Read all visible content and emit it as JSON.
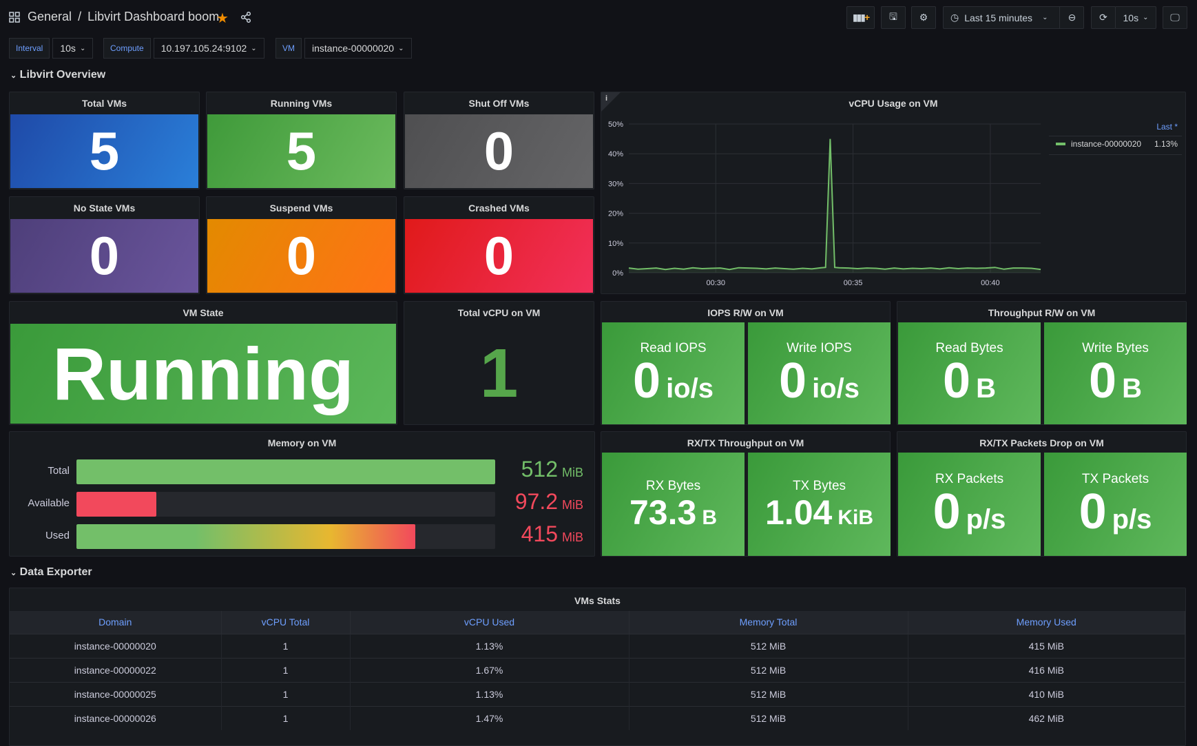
{
  "header": {
    "folder": "General",
    "separator": "/",
    "title": "Libvirt Dashboard boom",
    "time_range": "Last 15 minutes",
    "refresh": "10s",
    "icons": [
      "dashboard-grid-icon",
      "star-icon",
      "share-icon",
      "add-panel-icon",
      "save-icon",
      "gear-icon",
      "clock-icon",
      "zoom-out-icon",
      "refresh-icon",
      "tv-mode-icon"
    ]
  },
  "variables": [
    {
      "label": "Interval",
      "value": "10s"
    },
    {
      "label": "Compute",
      "value": "10.197.105.24:9102"
    },
    {
      "label": "VM",
      "value": "instance-00000020"
    }
  ],
  "rows": {
    "overview": "Libvirt Overview",
    "exporter": "Data Exporter"
  },
  "stats": [
    {
      "title": "Total VMs",
      "value": "5",
      "color": "#2566cc"
    },
    {
      "title": "Running VMs",
      "value": "5",
      "color": "#56a64b"
    },
    {
      "title": "Shut Off VMs",
      "value": "0",
      "color": "#5a5a5c"
    },
    {
      "title": "No State VMs",
      "value": "0",
      "color": "#5d4a8a"
    },
    {
      "title": "Suspend VMs",
      "value": "0",
      "color": "#f08c00"
    },
    {
      "title": "Crashed VMs",
      "value": "0",
      "color": "#e8243c"
    }
  ],
  "vm_state": {
    "title": "VM State",
    "value": "Running"
  },
  "total_vcpu": {
    "title": "Total vCPU on VM",
    "value": "1"
  },
  "iops": {
    "title": "IOPS R/W on VM",
    "items": [
      {
        "label": "Read IOPS",
        "value": "0",
        "unit": "io/s"
      },
      {
        "label": "Write IOPS",
        "value": "0",
        "unit": "io/s"
      }
    ]
  },
  "throughput": {
    "title": "Throughput R/W on VM",
    "items": [
      {
        "label": "Read Bytes",
        "value": "0",
        "unit": "B"
      },
      {
        "label": "Write Bytes",
        "value": "0",
        "unit": "B"
      }
    ]
  },
  "rxtx": {
    "title": "RX/TX Throughput on VM",
    "items": [
      {
        "label": "RX Bytes",
        "value": "73.3",
        "unit": "B"
      },
      {
        "label": "TX Bytes",
        "value": "1.04",
        "unit": "KiB"
      }
    ]
  },
  "drops": {
    "title": "RX/TX Packets Drop on VM",
    "items": [
      {
        "label": "RX Packets",
        "value": "0",
        "unit": "p/s"
      },
      {
        "label": "TX Packets",
        "value": "0",
        "unit": "p/s"
      }
    ]
  },
  "memory": {
    "title": "Memory on VM",
    "items": [
      {
        "label": "Total",
        "value": "512",
        "unit": "MiB",
        "fraction": 1.0,
        "color": "#73bf69"
      },
      {
        "label": "Available",
        "value": "97.2",
        "unit": "MiB",
        "fraction": 0.19,
        "color": "#f2495c"
      },
      {
        "label": "Used",
        "value": "415",
        "unit": "MiB",
        "fraction": 0.81,
        "color": "#f2495c"
      }
    ]
  },
  "chart_data": {
    "type": "line",
    "title": "vCPU Usage on VM",
    "x_ticks": [
      "00:30",
      "00:35",
      "00:40"
    ],
    "x_range": [
      "00:26:50",
      "00:41:50"
    ],
    "y_ticks": [
      "0%",
      "10%",
      "20%",
      "30%",
      "40%",
      "50%"
    ],
    "ylim": [
      0,
      50
    ],
    "grid": true,
    "legend_placement": "right",
    "legend_header": "Last *",
    "series": [
      {
        "name": "instance-00000020",
        "last": "1.13%",
        "color": "#73bf69",
        "x": [
          "00:26:50",
          "00:27:10",
          "00:27:30",
          "00:27:50",
          "00:28:10",
          "00:28:30",
          "00:28:50",
          "00:29:10",
          "00:29:30",
          "00:29:50",
          "00:30:10",
          "00:30:30",
          "00:30:50",
          "00:31:10",
          "00:31:30",
          "00:31:50",
          "00:32:10",
          "00:32:30",
          "00:32:50",
          "00:33:10",
          "00:33:30",
          "00:33:50",
          "00:34:00",
          "00:34:10",
          "00:34:20",
          "00:34:30",
          "00:34:50",
          "00:35:10",
          "00:35:30",
          "00:35:50",
          "00:36:10",
          "00:36:30",
          "00:36:50",
          "00:37:10",
          "00:37:30",
          "00:37:50",
          "00:38:10",
          "00:38:30",
          "00:38:50",
          "00:39:10",
          "00:39:30",
          "00:39:50",
          "00:40:10",
          "00:40:30",
          "00:40:50",
          "00:41:10",
          "00:41:30",
          "00:41:50"
        ],
        "y": [
          1.6,
          1.2,
          1.4,
          1.6,
          1.1,
          1.5,
          1.2,
          1.7,
          1.4,
          1.5,
          1.6,
          1.1,
          1.7,
          1.6,
          1.5,
          1.3,
          1.6,
          1.4,
          1.2,
          1.5,
          1.3,
          1.7,
          1.8,
          45,
          1.8,
          1.7,
          1.6,
          1.4,
          1.6,
          1.5,
          1.2,
          1.6,
          1.3,
          1.5,
          1.4,
          1.6,
          1.3,
          1.7,
          1.4,
          1.6,
          1.5,
          1.6,
          1.8,
          1.2,
          1.6,
          1.6,
          1.5,
          1.13
        ]
      }
    ]
  },
  "table": {
    "title": "VMs Stats",
    "columns": [
      "Domain",
      "vCPU Total",
      "vCPU Used",
      "Memory Total",
      "Memory Used"
    ],
    "rows": [
      [
        "instance-00000020",
        "1",
        "1.13%",
        "512 MiB",
        "415 MiB"
      ],
      [
        "instance-00000022",
        "1",
        "1.67%",
        "512 MiB",
        "416 MiB"
      ],
      [
        "instance-00000025",
        "1",
        "1.13%",
        "512 MiB",
        "410 MiB"
      ],
      [
        "instance-00000026",
        "1",
        "1.47%",
        "512 MiB",
        "462 MiB"
      ]
    ]
  }
}
